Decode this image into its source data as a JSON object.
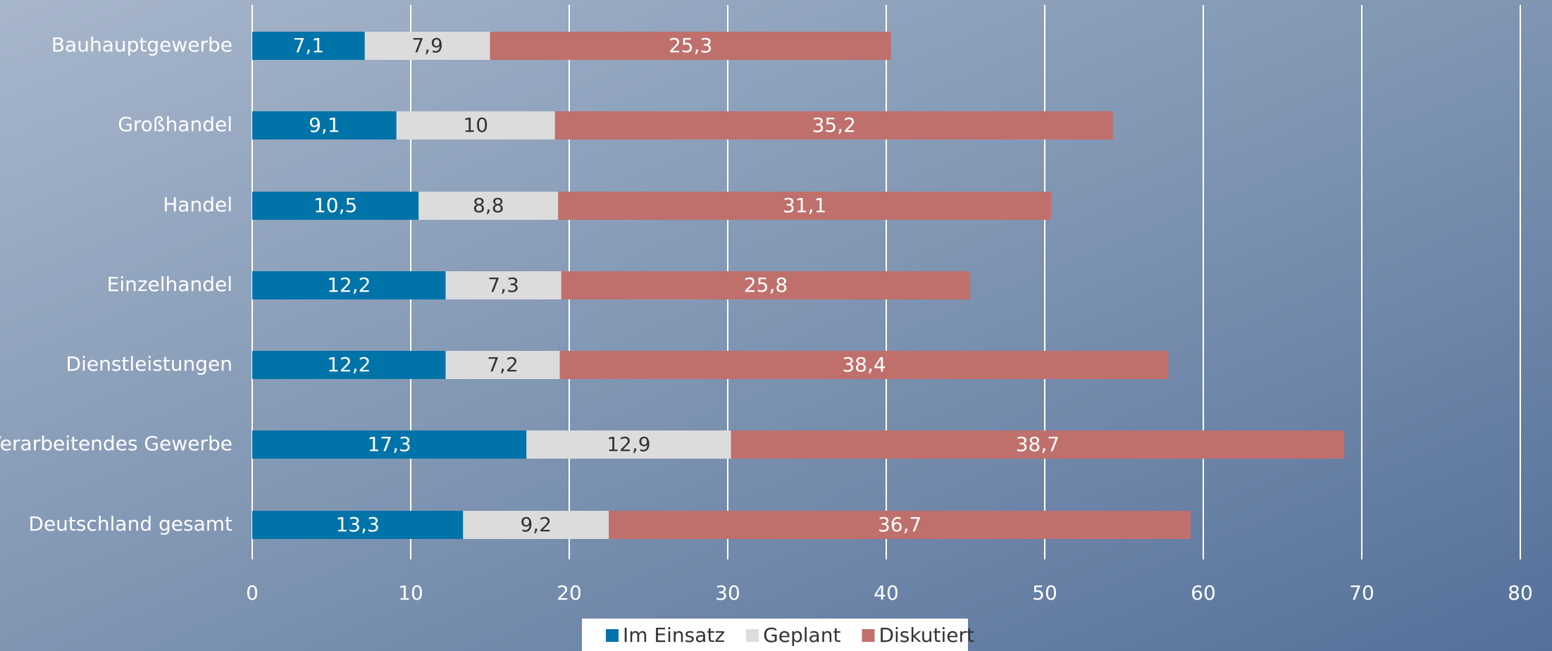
{
  "chart_data": {
    "type": "bar",
    "orientation": "horizontal",
    "stacked": true,
    "grid": true,
    "categories": [
      "Bauhauptgewerbe",
      "Großhandel",
      "Handel",
      "Einzelhandel",
      "Dienstleistungen",
      "Verarbeitendes Gewerbe",
      "Deutschland gesamt"
    ],
    "series": [
      {
        "name": "Im Einsatz",
        "color": "#0073a8",
        "label_color": "#ffffff",
        "values": [
          7.1,
          9.1,
          10.5,
          12.2,
          12.2,
          17.3,
          13.3
        ],
        "value_labels": [
          "7,1",
          "9,1",
          "10,5",
          "12,2",
          "12,2",
          "17,3",
          "13,3"
        ]
      },
      {
        "name": "Geplant",
        "color": "#dcdcdc",
        "label_color": "#333333",
        "values": [
          7.9,
          10,
          8.8,
          7.3,
          7.2,
          12.9,
          9.2
        ],
        "value_labels": [
          "7,9",
          "10",
          "8,8",
          "7,3",
          "7,2",
          "12,9",
          "9,2"
        ]
      },
      {
        "name": "Diskutiert",
        "color": "#c0706c",
        "label_color": "#ffffff",
        "values": [
          25.3,
          35.2,
          31.1,
          25.8,
          38.4,
          38.7,
          36.7
        ],
        "value_labels": [
          "25,3",
          "35,2",
          "31,1",
          "25,8",
          "38,4",
          "38,7",
          "36,7"
        ]
      }
    ],
    "xlim": [
      0,
      80
    ],
    "xticks": [
      0,
      10,
      20,
      30,
      40,
      50,
      60,
      70,
      80
    ]
  }
}
